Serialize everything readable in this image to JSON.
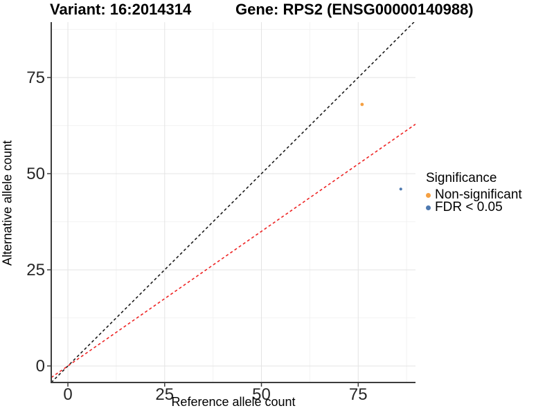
{
  "titles": {
    "left": "Variant: 16:2014314",
    "right": "Gene: RPS2 (ENSG00000140988)"
  },
  "chart_data": {
    "type": "scatter",
    "title_left": "Variant: 16:2014314",
    "title_right": "Gene: RPS2 (ENSG00000140988)",
    "xlabel": "Reference allele count",
    "ylabel": "Alternative allele count",
    "xlim": [
      -4.3,
      89.8
    ],
    "ylim": [
      -4.3,
      89.4
    ],
    "x_ticks": [
      0,
      25,
      50,
      75
    ],
    "y_ticks": [
      0,
      25,
      50,
      75
    ],
    "x_minor_ticks": [
      12.5,
      37.5,
      62.5,
      87.5
    ],
    "y_minor_ticks": [
      12.5,
      37.5,
      62.5,
      87.5
    ],
    "grid": true,
    "legend_position": "right",
    "series": [
      {
        "name": "Non-significant",
        "color": "#F5A042",
        "radius": 2.4,
        "points": [
          {
            "x": 76,
            "y": 68
          }
        ]
      },
      {
        "name": "FDR < 0.05",
        "color": "#4E79B0",
        "radius": 2.1,
        "points": [
          {
            "x": 86,
            "y": 46
          }
        ]
      }
    ],
    "lines": [
      {
        "name": "identity-line",
        "slope": 1.0,
        "intercept": 0,
        "color": "#1a1a1a",
        "dash": "4 3.5"
      },
      {
        "name": "expected-ratio-line",
        "slope": 0.7,
        "intercept": 0,
        "color": "#ee2222",
        "dash": "4 3.5"
      }
    ],
    "legend": {
      "title": "Significance",
      "items": [
        {
          "label": "Non-significant",
          "color": "#F5A042"
        },
        {
          "label": "FDR < 0.05",
          "color": "#4E79B0"
        }
      ]
    },
    "style": {
      "grid_major_color": "#e4e4e4",
      "grid_minor_color": "#f2f2f2",
      "axis_line_color": "#3c3c3c",
      "tick_label_color": "#262626",
      "panel_bg": "#ffffff"
    }
  }
}
